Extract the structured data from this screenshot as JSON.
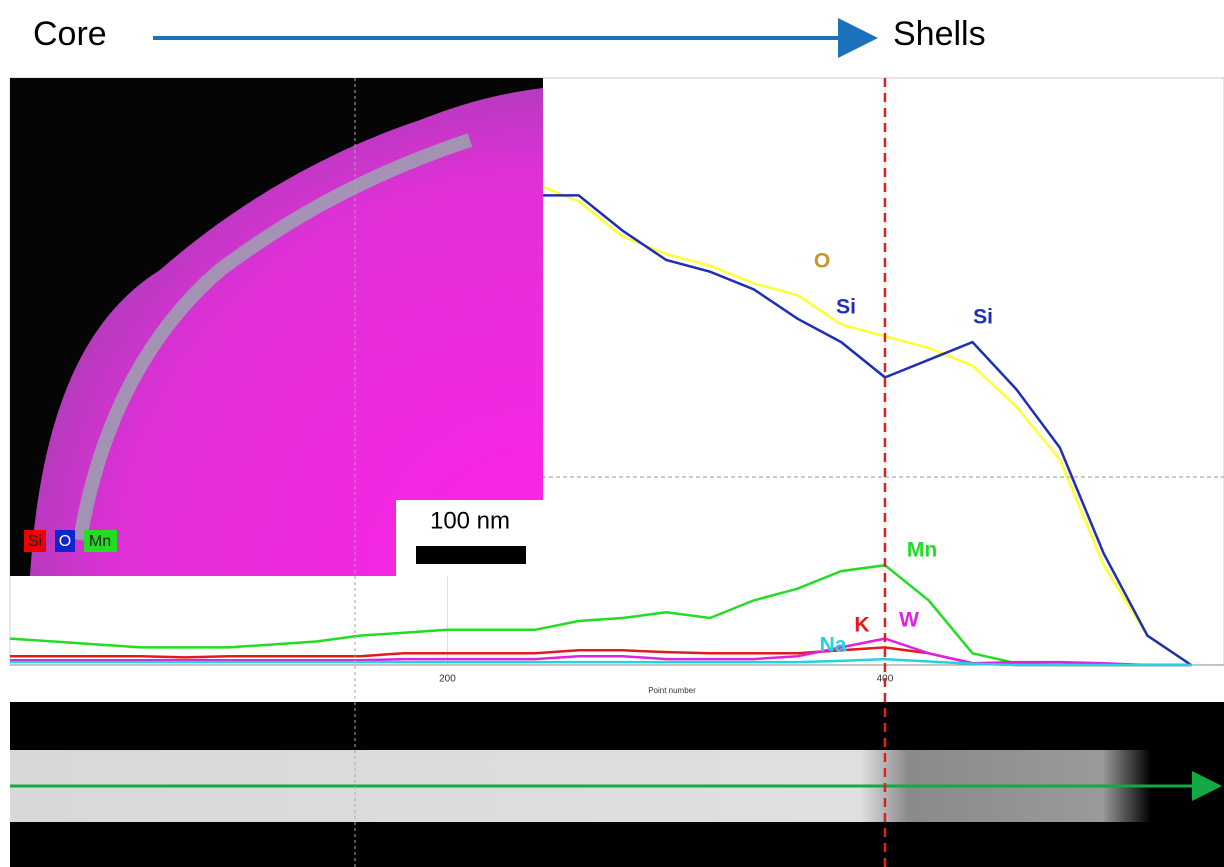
{
  "header": {
    "left": "Core",
    "right": "Shells"
  },
  "inset": {
    "legend": [
      "Si",
      "O",
      "Mn"
    ],
    "scale_bar": "100 nm"
  },
  "chart_data": {
    "type": "line",
    "x_label": "Point number",
    "x": [
      0,
      20,
      40,
      60,
      80,
      100,
      120,
      140,
      160,
      180,
      200,
      220,
      240,
      260,
      280,
      300,
      320,
      340,
      360,
      380,
      400,
      420,
      440,
      460,
      480,
      500,
      520,
      540
    ],
    "xlim": [
      0,
      555
    ],
    "xticks": [
      200,
      400
    ],
    "ylim": [
      0,
      100
    ],
    "marker_x": 400,
    "annotations": [
      "Si"
    ],
    "series": [
      {
        "name": "O",
        "color": "#ffff33",
        "values": [
          null,
          null,
          null,
          null,
          null,
          null,
          null,
          null,
          null,
          null,
          null,
          null,
          82,
          79,
          73,
          70,
          68,
          65,
          63,
          58,
          56,
          54,
          51,
          44,
          35,
          17,
          5,
          0
        ]
      },
      {
        "name": "Si",
        "color": "#1f2fb4",
        "values": [
          null,
          null,
          null,
          null,
          null,
          null,
          null,
          null,
          null,
          null,
          null,
          null,
          80,
          80,
          74,
          69,
          67,
          64,
          59,
          55,
          49,
          52,
          55,
          47,
          37,
          19,
          5,
          0
        ]
      },
      {
        "name": "Mn",
        "color": "#22dd22",
        "values": [
          4.5,
          4,
          3.5,
          3,
          3,
          3,
          3.5,
          4,
          5,
          5.5,
          6,
          6,
          6,
          7.5,
          8,
          9,
          8,
          11,
          13,
          16,
          17,
          11,
          2,
          0.3,
          0,
          0,
          0,
          0
        ]
      },
      {
        "name": "K",
        "color": "#e31a1c",
        "values": [
          1.5,
          1.5,
          1.5,
          1.5,
          1.3,
          1.5,
          1.5,
          1.5,
          1.5,
          2,
          2,
          2,
          2,
          2.5,
          2.5,
          2.2,
          2,
          2,
          2,
          2.5,
          3,
          2,
          0.3,
          0,
          0,
          0,
          0,
          0
        ]
      },
      {
        "name": "W",
        "color": "#e021e0",
        "values": [
          0.8,
          0.8,
          0.8,
          0.8,
          0.8,
          0.8,
          0.8,
          0.8,
          0.8,
          1,
          1,
          1,
          1,
          1.5,
          1.5,
          1,
          1,
          1,
          1.5,
          3,
          4.5,
          2,
          0.3,
          0.5,
          0.5,
          0.3,
          0,
          0
        ]
      },
      {
        "name": "Na",
        "color": "#22d3e0",
        "values": [
          0.5,
          0.5,
          0.5,
          0.5,
          0.5,
          0.5,
          0.5,
          0.5,
          0.5,
          0.5,
          0.5,
          0.5,
          0.5,
          0.5,
          0.5,
          0.5,
          0.5,
          0.5,
          0.5,
          0.7,
          1,
          0.6,
          0.2,
          0,
          0,
          0,
          0,
          0
        ]
      }
    ]
  }
}
